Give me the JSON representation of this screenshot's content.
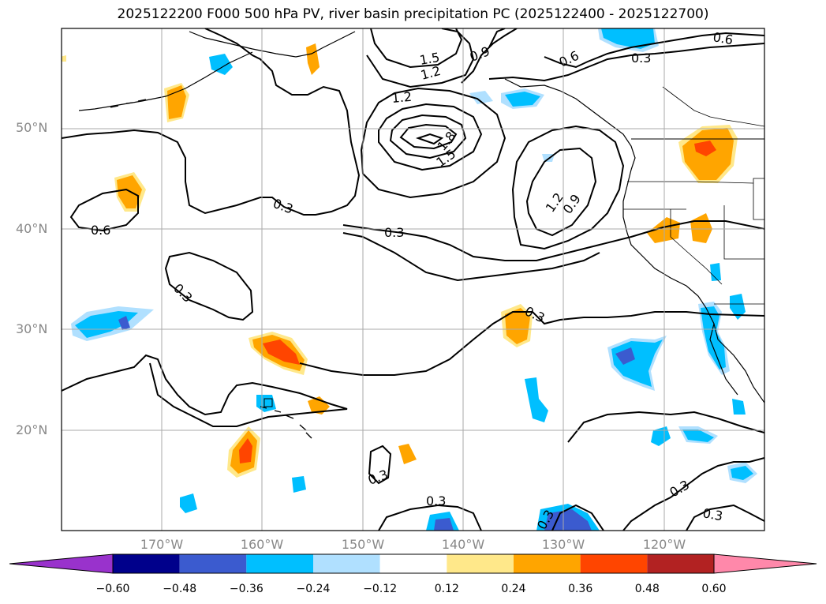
{
  "title": "2025122200 F000 500 hPa PV, river basin precipitation PC (2025122400 - 2025122700)",
  "lat_labels": [
    "50°N",
    "40°N",
    "30°N",
    "20°N"
  ],
  "lon_labels": [
    "170°W",
    "160°W",
    "150°W",
    "140°W",
    "130°W",
    "120°W"
  ],
  "contour_labels": [
    "0.6",
    "0.3",
    "0.3",
    "0.3",
    "0.3",
    "0.3",
    "1.5",
    "1.2",
    "1.2",
    "1.8",
    "1.5",
    "0.9",
    "0.6",
    "0.3",
    "0.6",
    "1.2",
    "0.9",
    "0.3",
    "0.3",
    "0.3",
    "0.3"
  ],
  "colorbar": {
    "ticks": [
      "−0.60",
      "−0.48",
      "−0.36",
      "−0.24",
      "−0.12",
      "0.12",
      "0.24",
      "0.36",
      "0.48",
      "0.60"
    ],
    "colors": [
      "#9932cc",
      "#00008b",
      "#3b5bcf",
      "#00bfff",
      "#b0e0ff",
      "#ffffff",
      "#ffe88a",
      "#ffa500",
      "#ff4500",
      "#b22222",
      "#ff88aa"
    ]
  }
}
